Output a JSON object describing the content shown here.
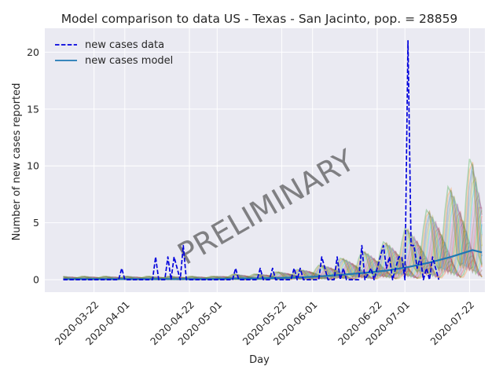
{
  "chart_data": {
    "type": "line",
    "title": "Model comparison to data US - Texas - San Jacinto, pop. = 28859",
    "xlabel": "Day",
    "ylabel": "Number of new cases reported",
    "x_range": [
      "2020-03-06",
      "2020-07-27"
    ],
    "ylim": [
      -1.1,
      22.1
    ],
    "grid": true,
    "legend_position": "top-left",
    "x_ticks": [
      "2020-03-22",
      "2020-04-01",
      "2020-04-22",
      "2020-05-01",
      "2020-05-22",
      "2020-06-01",
      "2020-06-22",
      "2020-07-01",
      "2020-07-22"
    ],
    "y_ticks": [
      0,
      5,
      10,
      15,
      20
    ],
    "watermark": "PRELIMINARY",
    "series": [
      {
        "name": "new cases data",
        "style": "dashed",
        "color": "#0000dd",
        "points": [
          [
            "2020-03-12",
            0
          ],
          [
            "2020-03-30",
            0
          ],
          [
            "2020-03-31",
            1
          ],
          [
            "2020-04-01",
            0
          ],
          [
            "2020-04-10",
            0
          ],
          [
            "2020-04-11",
            2
          ],
          [
            "2020-04-12",
            0
          ],
          [
            "2020-04-14",
            0
          ],
          [
            "2020-04-15",
            2
          ],
          [
            "2020-04-16",
            0
          ],
          [
            "2020-04-17",
            2
          ],
          [
            "2020-04-18",
            1
          ],
          [
            "2020-04-19",
            0
          ],
          [
            "2020-04-20",
            3
          ],
          [
            "2020-04-21",
            0
          ],
          [
            "2020-05-06",
            0
          ],
          [
            "2020-05-07",
            1
          ],
          [
            "2020-05-08",
            0
          ],
          [
            "2020-05-14",
            0
          ],
          [
            "2020-05-15",
            1
          ],
          [
            "2020-05-16",
            0
          ],
          [
            "2020-05-18",
            0
          ],
          [
            "2020-05-19",
            1
          ],
          [
            "2020-05-20",
            0
          ],
          [
            "2020-05-25",
            0
          ],
          [
            "2020-05-26",
            1
          ],
          [
            "2020-05-27",
            0
          ],
          [
            "2020-05-28",
            1
          ],
          [
            "2020-05-29",
            0
          ],
          [
            "2020-06-03",
            0
          ],
          [
            "2020-06-04",
            2
          ],
          [
            "2020-06-05",
            1
          ],
          [
            "2020-06-06",
            0
          ],
          [
            "2020-06-08",
            0
          ],
          [
            "2020-06-09",
            2
          ],
          [
            "2020-06-10",
            0
          ],
          [
            "2020-06-11",
            1
          ],
          [
            "2020-06-12",
            0
          ],
          [
            "2020-06-16",
            0
          ],
          [
            "2020-06-17",
            3
          ],
          [
            "2020-06-18",
            0
          ],
          [
            "2020-06-20",
            1
          ],
          [
            "2020-06-21",
            0
          ],
          [
            "2020-06-23",
            2
          ],
          [
            "2020-06-24",
            3
          ],
          [
            "2020-06-25",
            1
          ],
          [
            "2020-06-26",
            2
          ],
          [
            "2020-06-27",
            0
          ],
          [
            "2020-06-28",
            1
          ],
          [
            "2020-06-29",
            2
          ],
          [
            "2020-06-30",
            2
          ],
          [
            "2020-07-01",
            0
          ],
          [
            "2020-07-02",
            21
          ],
          [
            "2020-07-03",
            3
          ],
          [
            "2020-07-04",
            3
          ],
          [
            "2020-07-05",
            1
          ],
          [
            "2020-07-06",
            2
          ],
          [
            "2020-07-07",
            0
          ],
          [
            "2020-07-08",
            1
          ],
          [
            "2020-07-09",
            0
          ],
          [
            "2020-07-10",
            2
          ],
          [
            "2020-07-11",
            1
          ],
          [
            "2020-07-12",
            0
          ]
        ]
      },
      {
        "name": "new cases model",
        "style": "solid",
        "color": "#1f77b4",
        "points": [
          [
            "2020-03-12",
            0.05
          ],
          [
            "2020-03-19",
            0.05
          ],
          [
            "2020-03-26",
            0.05
          ],
          [
            "2020-04-02",
            0.05
          ],
          [
            "2020-04-09",
            0.05
          ],
          [
            "2020-04-16",
            0.05
          ],
          [
            "2020-04-23",
            0.05
          ],
          [
            "2020-04-30",
            0.05
          ],
          [
            "2020-05-07",
            0.1
          ],
          [
            "2020-05-14",
            0.1
          ],
          [
            "2020-05-21",
            0.15
          ],
          [
            "2020-05-28",
            0.2
          ],
          [
            "2020-06-04",
            0.3
          ],
          [
            "2020-06-11",
            0.45
          ],
          [
            "2020-06-18",
            0.6
          ],
          [
            "2020-06-25",
            0.8
          ],
          [
            "2020-07-02",
            1.1
          ],
          [
            "2020-07-09",
            1.5
          ],
          [
            "2020-07-16",
            2.0
          ],
          [
            "2020-07-23",
            2.6
          ],
          [
            "2020-07-26",
            2.4
          ]
        ]
      }
    ]
  }
}
